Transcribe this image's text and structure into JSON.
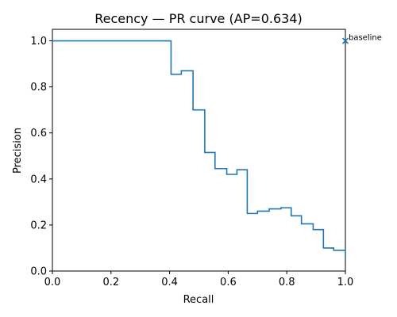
{
  "chart_data": {
    "type": "line",
    "title": "Recency — PR curve (AP=0.634)",
    "xlabel": "Recall",
    "ylabel": "Precision",
    "xlim": [
      0.0,
      1.0
    ],
    "ylim": [
      0.0,
      1.05
    ],
    "xticks": [
      "0.0",
      "0.2",
      "0.4",
      "0.6",
      "0.8",
      "1.0"
    ],
    "yticks": [
      "0.0",
      "0.2",
      "0.4",
      "0.6",
      "0.8",
      "1.0"
    ],
    "grid": false,
    "line_color": "#1f77b4",
    "series": [
      {
        "name": "PR curve",
        "step": "post",
        "x": [
          0.0,
          0.405,
          0.405,
          0.44,
          0.48,
          0.48,
          0.52,
          0.52,
          0.555,
          0.555,
          0.595,
          0.595,
          0.63,
          0.665,
          0.665,
          0.7,
          0.74,
          0.78,
          0.815,
          0.815,
          0.85,
          0.85,
          0.89,
          0.89,
          0.925,
          0.925,
          0.96,
          0.96,
          1.0,
          1.0
        ],
        "y": [
          1.0,
          1.0,
          0.855,
          0.87,
          0.87,
          0.7,
          0.7,
          0.515,
          0.515,
          0.445,
          0.445,
          0.42,
          0.44,
          0.44,
          0.25,
          0.26,
          0.27,
          0.275,
          0.275,
          0.24,
          0.24,
          0.205,
          0.205,
          0.18,
          0.18,
          0.1,
          0.1,
          0.09,
          0.09,
          0.06
        ]
      }
    ],
    "markers": [
      {
        "label": "baseline",
        "x": 1.0,
        "y": 1.0,
        "symbol": "x"
      }
    ]
  }
}
